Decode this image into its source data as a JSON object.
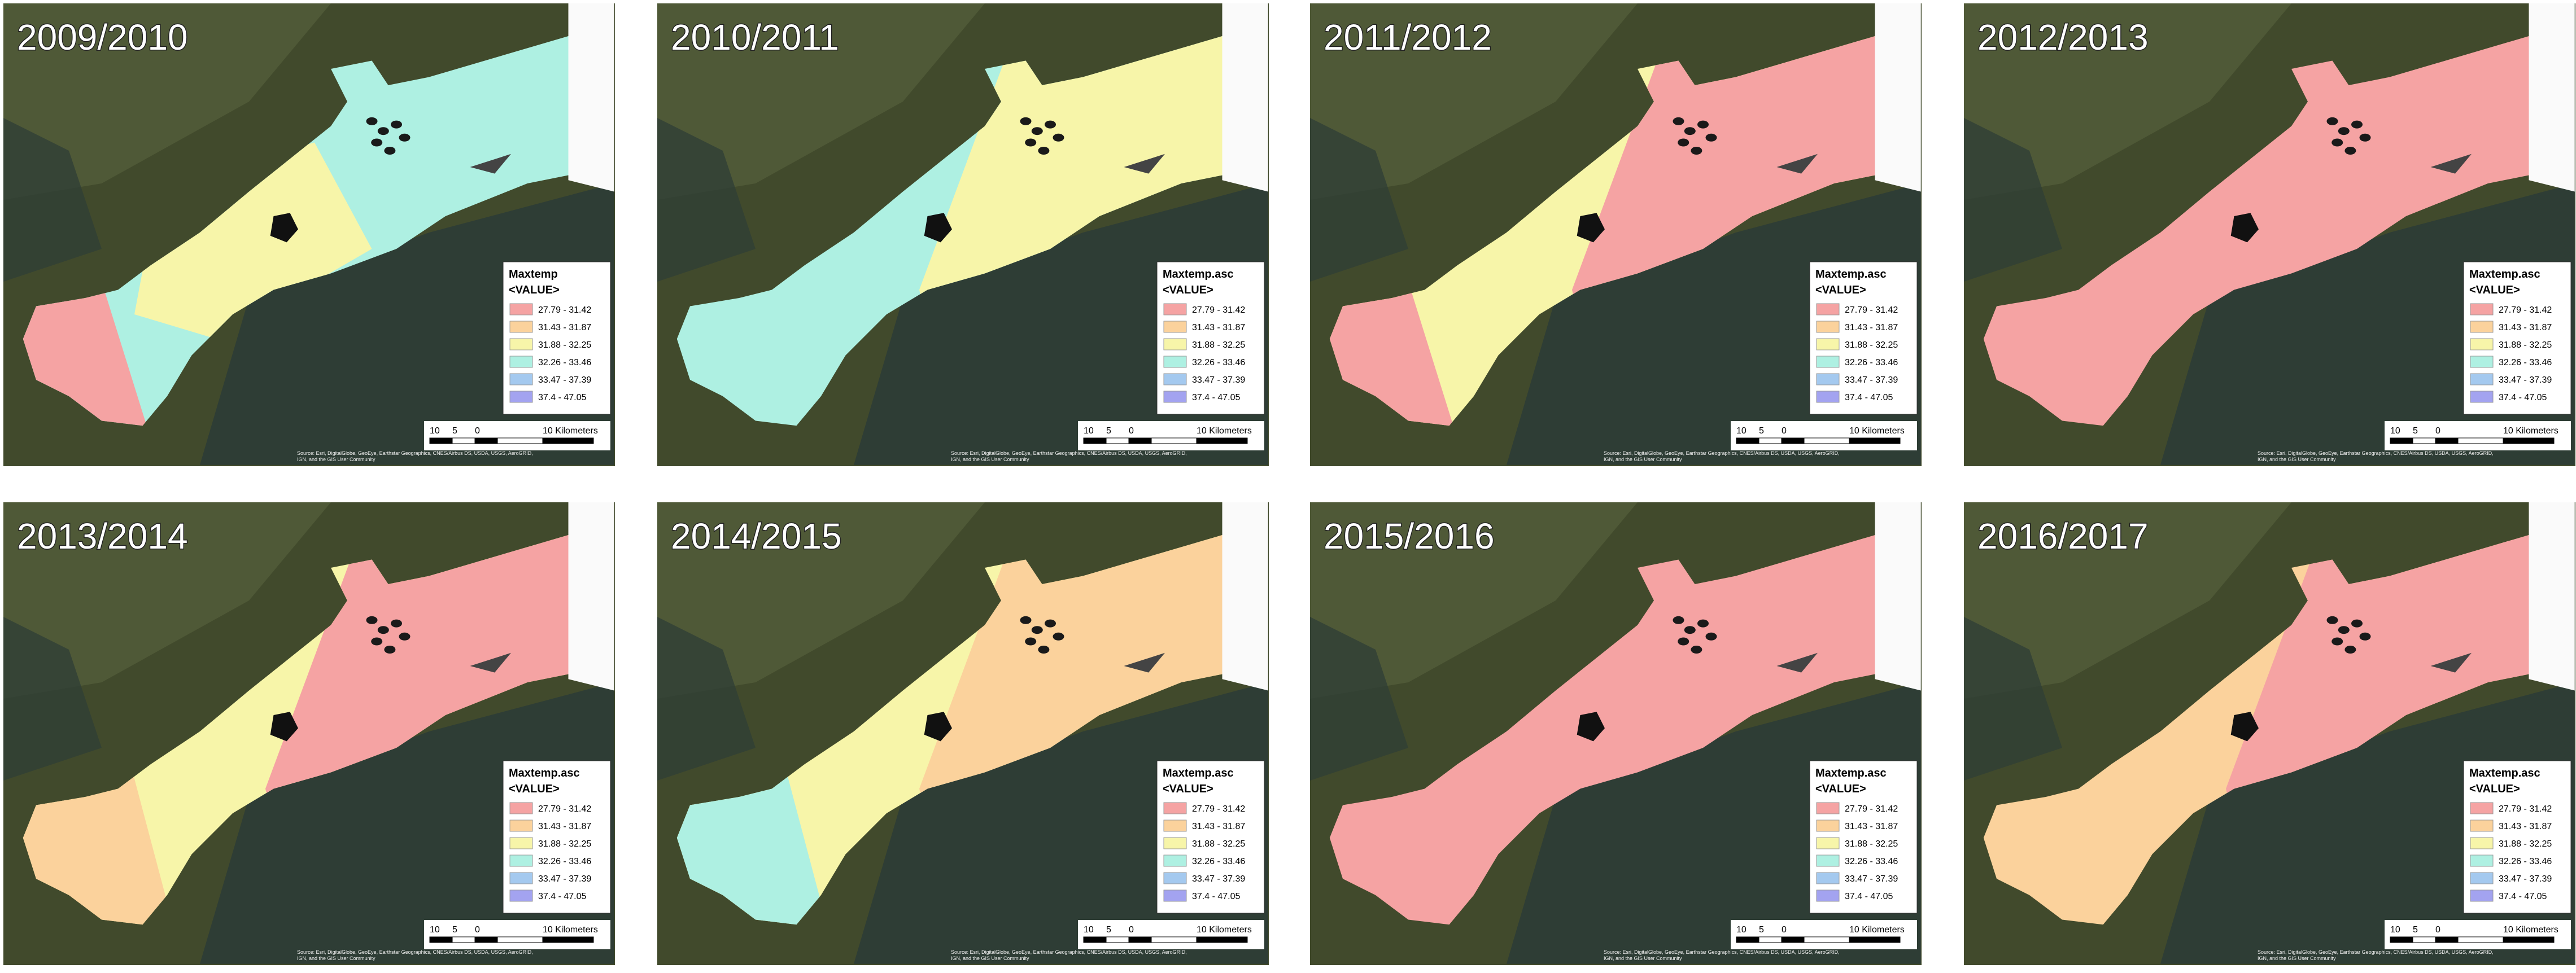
{
  "legend_heading": "<VALUE>",
  "classes": [
    {
      "label": "27.79 - 31.42",
      "color": "#f5a3a3"
    },
    {
      "label": "31.43 - 31.87",
      "color": "#fbd29c"
    },
    {
      "label": "31.88 - 32.25",
      "color": "#f7f5a9"
    },
    {
      "label": "32.26 - 33.46",
      "color": "#aef0e2"
    },
    {
      "label": "33.47 - 37.39",
      "color": "#a4c9ef"
    },
    {
      "label": "37.4 - 47.05",
      "color": "#a3a3f0"
    }
  ],
  "scale_labels": [
    "10",
    "5",
    "0",
    "10 Kilometers"
  ],
  "attribution": [
    "Source: Esri, DigitalGlobe, GeoEye, Earthstar Geographics, CNES/Airbus DS, USDA, USGS, AeroGRID,",
    "IGN, and the GIS User Community"
  ],
  "panels": [
    {
      "title": "2009/2010",
      "legend_title": "Maxtemp"
    },
    {
      "title": "2010/2011",
      "legend_title": "Maxtemp.asc"
    },
    {
      "title": "2011/2012",
      "legend_title": "Maxtemp.asc"
    },
    {
      "title": "2012/2013",
      "legend_title": "Maxtemp.asc"
    },
    {
      "title": "2013/2014",
      "legend_title": "Maxtemp.asc"
    },
    {
      "title": "2014/2015",
      "legend_title": "Maxtemp.asc"
    },
    {
      "title": "2015/2016",
      "legend_title": "Maxtemp.asc"
    },
    {
      "title": "2016/2017",
      "legend_title": "Maxtemp.asc"
    }
  ]
}
